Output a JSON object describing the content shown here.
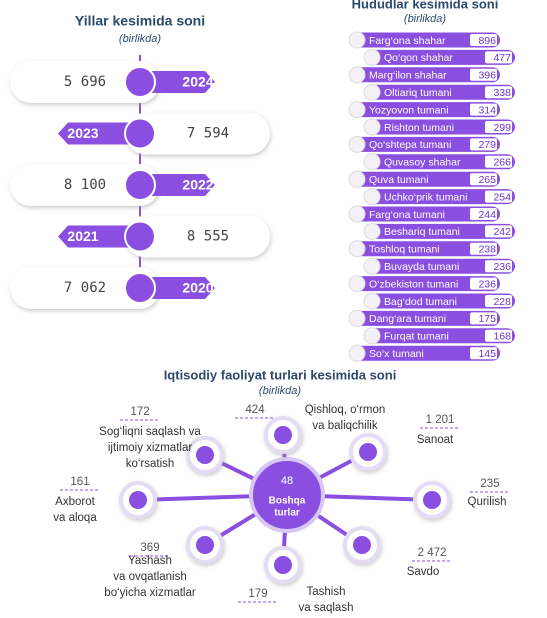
{
  "years": {
    "title": "Yillar kesimida soni",
    "subtitle": "(birlikda)",
    "items": [
      {
        "year": "2024",
        "value": "5 696"
      },
      {
        "year": "2023",
        "value": "7 594"
      },
      {
        "year": "2022",
        "value": "8 100"
      },
      {
        "year": "2021",
        "value": "8 555"
      },
      {
        "year": "2020",
        "value": "7 062"
      }
    ]
  },
  "regions": {
    "title": "Hududlar kesimida soni",
    "subtitle": "(birlikda)",
    "items": [
      {
        "name": "Farg‘ona shahar",
        "value": "896"
      },
      {
        "name": "Qo‘qon shahar",
        "value": "477"
      },
      {
        "name": "Marg‘ilon shahar",
        "value": "396"
      },
      {
        "name": "Oltiariq tumani",
        "value": "338"
      },
      {
        "name": "Yozyovon tumani",
        "value": "314"
      },
      {
        "name": "Rishton tumani",
        "value": "299"
      },
      {
        "name": "Qo‘shtepa tumani",
        "value": "279"
      },
      {
        "name": "Quvasoy shahar",
        "value": "266"
      },
      {
        "name": "Quva tumani",
        "value": "265"
      },
      {
        "name": "Uchko‘prik tumani",
        "value": "254"
      },
      {
        "name": "Farg‘ona tumani",
        "value": "244"
      },
      {
        "name": "Beshariq tumani",
        "value": "242"
      },
      {
        "name": "Toshloq tumani",
        "value": "238"
      },
      {
        "name": "Buvayda tumani",
        "value": "236"
      },
      {
        "name": "O‘zbekiston tumani",
        "value": "236"
      },
      {
        "name": "Bag‘dod tumani",
        "value": "228"
      },
      {
        "name": "Dang‘ara tumani",
        "value": "175"
      },
      {
        "name": "Furqat tumani",
        "value": "168"
      },
      {
        "name": "So‘x tumani",
        "value": "145"
      }
    ]
  },
  "activities": {
    "title": "Iqtisodiy faoliyat turlari kesimida soni",
    "subtitle": "(birlikda)",
    "center": {
      "value": "48",
      "label": [
        "Boshqa",
        "turlar"
      ]
    },
    "items": [
      {
        "value": "172",
        "label": [
          "Sog‘liqni saqlash va",
          "ijtimoiy xizmatlar",
          "ko‘rsatish"
        ]
      },
      {
        "value": "424",
        "label": [
          "Qishloq, o‘rmon",
          "va baliqchilik"
        ]
      },
      {
        "value": "1 201",
        "label": [
          "Sanoat"
        ]
      },
      {
        "value": "235",
        "label": [
          "Qurilish"
        ]
      },
      {
        "value": "2 472",
        "label": [
          "Savdo"
        ]
      },
      {
        "value": "179",
        "label": [
          "Tashish",
          "va saqlash"
        ]
      },
      {
        "value": "369",
        "label": [
          "Yashash",
          "va ovqatlanish",
          "bo‘yicha xizmatlar"
        ]
      },
      {
        "value": "161",
        "label": [
          "Axborot",
          "va aloqa"
        ]
      }
    ]
  }
}
